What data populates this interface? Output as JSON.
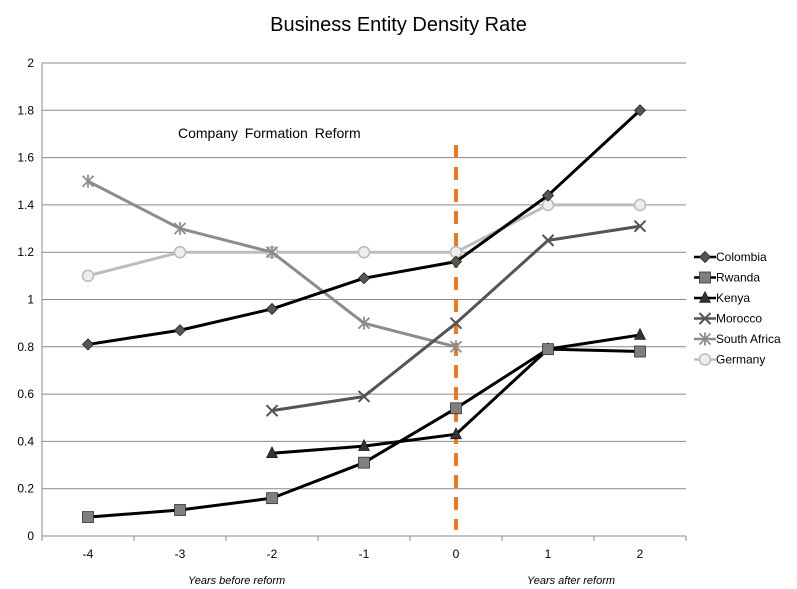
{
  "chart_data": {
    "type": "line",
    "title": "Business Entity Density Rate",
    "annotation": "Company Formation Reform",
    "under_labels": {
      "before": "Years before reform",
      "after": "Years after reform"
    },
    "x": [
      -4,
      -3,
      -2,
      -1,
      0,
      1,
      2
    ],
    "x_tick_labels": [
      "-4",
      "-3",
      "-2",
      "-1",
      "0",
      "1",
      "2"
    ],
    "y_tick_labels": [
      "0",
      "0.2",
      "0.4",
      "0.6",
      "0.8",
      "1",
      "1.2",
      "1.4",
      "1.6",
      "1.8",
      "2"
    ],
    "ylim": [
      0,
      2
    ],
    "grid": true,
    "legend_position": "right",
    "reform_line": {
      "x": 0,
      "color": "#f07820",
      "style": "dashed"
    },
    "series": [
      {
        "name": "Colombia",
        "marker": "diamond",
        "color": "#000000",
        "marker_color": "#555555",
        "values": [
          0.81,
          0.87,
          0.96,
          1.09,
          1.16,
          1.44,
          1.8
        ]
      },
      {
        "name": "Rwanda",
        "marker": "square",
        "color": "#000000",
        "marker_color": "#7f7f7f",
        "values": [
          0.08,
          0.11,
          0.16,
          0.31,
          0.54,
          0.79,
          0.78
        ]
      },
      {
        "name": "Kenya",
        "marker": "triangle",
        "color": "#000000",
        "marker_color": "#333333",
        "values": [
          null,
          null,
          0.35,
          0.38,
          0.43,
          0.79,
          0.85
        ]
      },
      {
        "name": "Morocco",
        "marker": "x",
        "color": "#555555",
        "marker_color": "#555555",
        "values": [
          null,
          null,
          0.53,
          0.59,
          0.9,
          1.25,
          1.31
        ]
      },
      {
        "name": "South Africa",
        "marker": "star",
        "color": "#8c8c8c",
        "marker_color": "#8c8c8c",
        "values": [
          1.5,
          1.3,
          1.2,
          0.9,
          0.8,
          null,
          null
        ]
      },
      {
        "name": "Germany",
        "marker": "circle",
        "color": "#bdbdbd",
        "marker_color": "#bdbdbd",
        "values": [
          1.1,
          1.2,
          1.2,
          1.2,
          1.2,
          1.4,
          1.4
        ]
      }
    ]
  }
}
